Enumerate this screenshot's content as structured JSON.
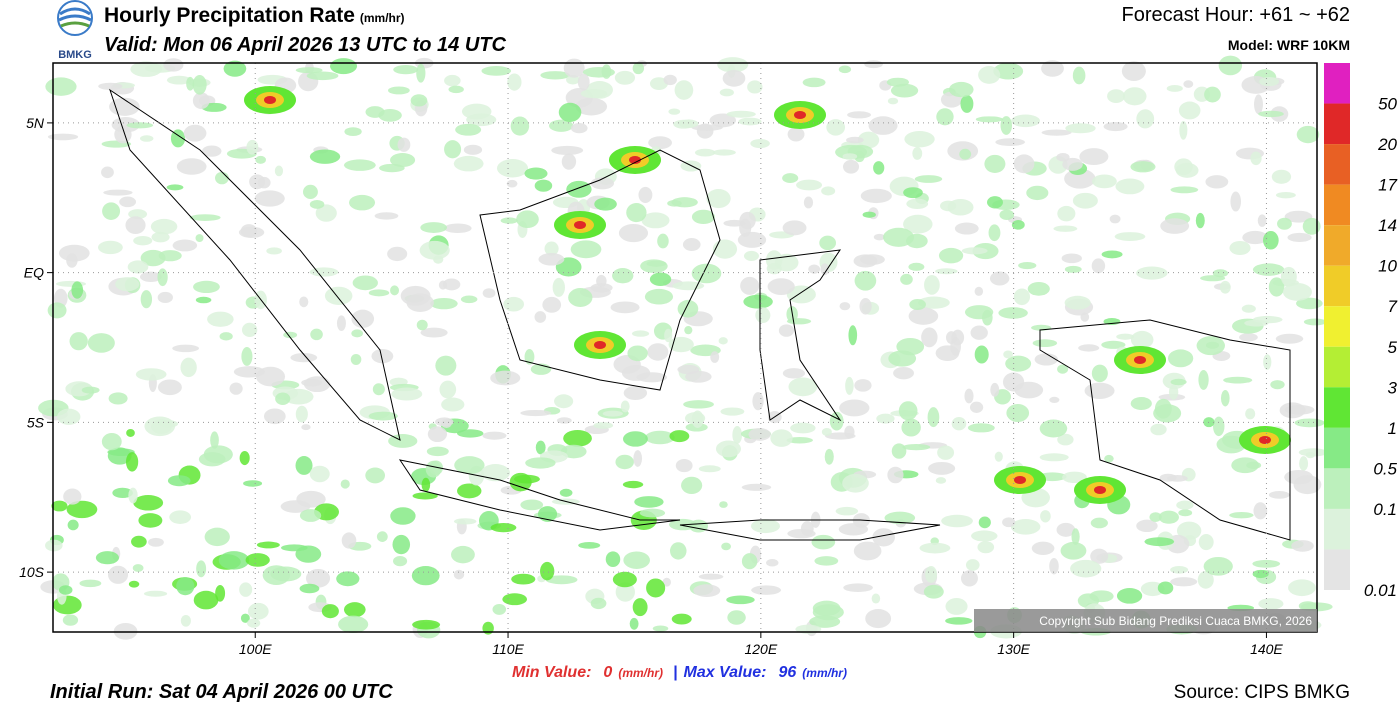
{
  "header": {
    "logo_text": "BMKG",
    "title": "Hourly Precipitation Rate",
    "title_unit": "(mm/hr)",
    "valid": "Valid: Mon 06 April 2026 13 UTC to 14 UTC",
    "forecast": "Forecast Hour: +61 ~ +62",
    "model": "Model: WRF 10KM"
  },
  "map": {
    "lon_range": [
      92,
      142
    ],
    "lat_range": [
      7,
      -12
    ],
    "lat_ticks": [
      {
        "value": 5,
        "label": "5N"
      },
      {
        "value": 0,
        "label": "EQ"
      },
      {
        "value": -5,
        "label": "5S"
      },
      {
        "value": -10,
        "label": "10S"
      }
    ],
    "lon_ticks": [
      {
        "value": 100,
        "label": "100E"
      },
      {
        "value": 110,
        "label": "110E"
      },
      {
        "value": 120,
        "label": "120E"
      },
      {
        "value": 130,
        "label": "130E"
      },
      {
        "value": 140,
        "label": "140E"
      }
    ],
    "copyright": "Copyright Sub Bidang Prediksi Cuaca BMKG, 2026"
  },
  "colorbar": {
    "top_color": "#e020c0",
    "levels": [
      {
        "label": "50",
        "color": "#e02828"
      },
      {
        "label": "20",
        "color": "#e86024"
      },
      {
        "label": "17",
        "color": "#f08a22"
      },
      {
        "label": "14",
        "color": "#f0aa2a"
      },
      {
        "label": "10",
        "color": "#f0cc28"
      },
      {
        "label": "7",
        "color": "#f0f030"
      },
      {
        "label": "5",
        "color": "#b4ee34"
      },
      {
        "label": "3",
        "color": "#60e634"
      },
      {
        "label": "1",
        "color": "#86ea86"
      },
      {
        "label": "0.5",
        "color": "#bcf0bc"
      },
      {
        "label": "0.1",
        "color": "#dcf2dc"
      },
      {
        "label": "0.01",
        "color": "#e4e4e4"
      }
    ]
  },
  "footer": {
    "min_label": "Min Value:",
    "min_value": "0",
    "min_unit": "(mm/hr)",
    "separator": "|",
    "max_label": "Max Value:",
    "max_value": "96",
    "max_unit": "(mm/hr)",
    "initial_run": "Initial Run: Sat 04 April 2026 00 UTC",
    "source": "Source: CIPS BMKG"
  }
}
